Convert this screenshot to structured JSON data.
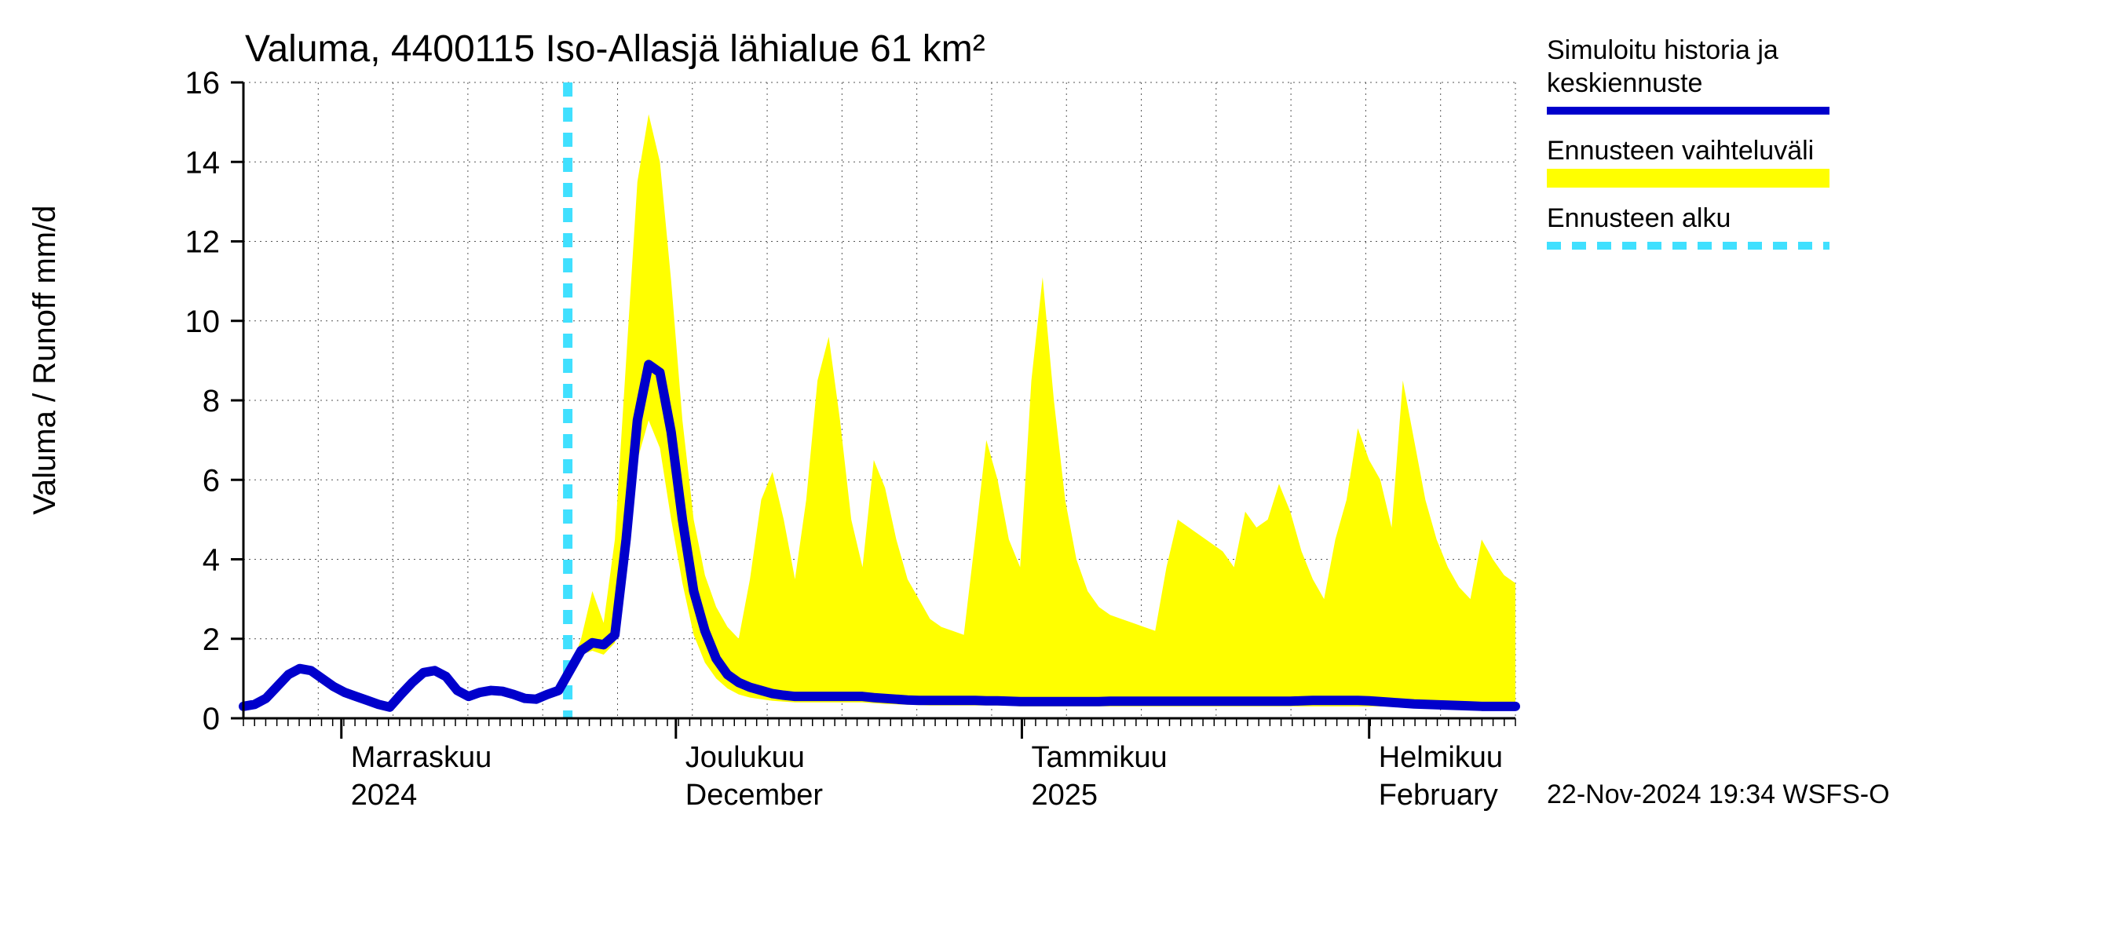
{
  "chart": {
    "type": "line+area",
    "title": "Valuma, 4400115 Iso-Allasjä lähialue 61 km²",
    "y_axis": {
      "label": "Valuma / Runoff   mm/d",
      "min": 0,
      "max": 16,
      "tick_step": 2,
      "label_fontsize": 40,
      "tick_fontsize": 40,
      "tick_color": "#000000"
    },
    "x_axis": {
      "type": "time",
      "months": [
        {
          "top": "Marraskuu",
          "bottom": "2024",
          "pos": 0.077
        },
        {
          "top": "Joulukuu",
          "bottom": "December",
          "pos": 0.34
        },
        {
          "top": "Tammikuu",
          "bottom": "2025",
          "pos": 0.612
        },
        {
          "top": "Helmikuu",
          "bottom": "February",
          "pos": 0.885
        }
      ],
      "label_fontsize": 38
    },
    "grid": {
      "color": "#555555",
      "dash": "2,5",
      "stroke_width": 1
    },
    "background_color": "#ffffff",
    "plot_border_color": "#000000",
    "plot_border_width": 3,
    "footer": "22-Nov-2024 19:34 WSFS-O",
    "legend": {
      "items": [
        {
          "label_line1": "Simuloitu historia ja",
          "label_line2": "keskiennuste",
          "type": "line",
          "color": "#0000cc",
          "stroke_width": 10
        },
        {
          "label_line1": "Ennusteen vaihteluväli",
          "label_line2": "",
          "type": "area",
          "color": "#ffff00"
        },
        {
          "label_line1": "Ennusteen alku",
          "label_line2": "",
          "type": "dash",
          "color": "#40e0ff",
          "stroke_width": 10,
          "dash": "18,14"
        }
      ]
    },
    "forecast_start_x": 0.255,
    "forecast_vline": {
      "color": "#40e0ff",
      "stroke_width": 12,
      "dash": "18,14"
    },
    "band_color": "#ffff00",
    "line_color": "#0000cc",
    "line_width": 12,
    "n_points": 114,
    "central": [
      0.3,
      0.35,
      0.5,
      0.8,
      1.1,
      1.25,
      1.2,
      1.0,
      0.8,
      0.65,
      0.55,
      0.45,
      0.35,
      0.28,
      0.6,
      0.9,
      1.15,
      1.2,
      1.05,
      0.7,
      0.55,
      0.65,
      0.7,
      0.68,
      0.6,
      0.5,
      0.48,
      0.6,
      0.7,
      1.2,
      1.7,
      1.9,
      1.85,
      2.1,
      4.5,
      7.5,
      8.9,
      8.7,
      7.2,
      5.0,
      3.2,
      2.2,
      1.5,
      1.1,
      0.9,
      0.78,
      0.7,
      0.62,
      0.58,
      0.55,
      0.55,
      0.55,
      0.55,
      0.55,
      0.55,
      0.55,
      0.52,
      0.5,
      0.48,
      0.46,
      0.45,
      0.45,
      0.45,
      0.45,
      0.45,
      0.45,
      0.44,
      0.44,
      0.43,
      0.42,
      0.42,
      0.42,
      0.42,
      0.42,
      0.42,
      0.42,
      0.42,
      0.43,
      0.43,
      0.43,
      0.43,
      0.43,
      0.43,
      0.43,
      0.43,
      0.43,
      0.43,
      0.43,
      0.43,
      0.43,
      0.43,
      0.43,
      0.43,
      0.43,
      0.44,
      0.45,
      0.45,
      0.45,
      0.45,
      0.45,
      0.44,
      0.42,
      0.4,
      0.38,
      0.36,
      0.35,
      0.34,
      0.33,
      0.32,
      0.31,
      0.3,
      0.3,
      0.3,
      0.3
    ],
    "upper": [
      0.3,
      0.35,
      0.5,
      0.8,
      1.1,
      1.25,
      1.2,
      1.0,
      0.8,
      0.65,
      0.55,
      0.45,
      0.35,
      0.28,
      0.6,
      0.9,
      1.15,
      1.2,
      1.05,
      0.7,
      0.55,
      0.65,
      0.7,
      0.68,
      0.6,
      0.5,
      0.48,
      0.6,
      0.7,
      1.2,
      2.0,
      3.2,
      2.4,
      4.5,
      9.0,
      13.5,
      15.2,
      14.0,
      11.0,
      7.5,
      5.0,
      3.6,
      2.8,
      2.3,
      2.0,
      3.5,
      5.5,
      6.2,
      5.0,
      3.5,
      5.5,
      8.5,
      9.6,
      7.5,
      5.0,
      3.8,
      6.5,
      5.8,
      4.5,
      3.5,
      3.0,
      2.5,
      2.3,
      2.2,
      2.1,
      4.5,
      7.0,
      6.0,
      4.5,
      3.8,
      8.5,
      11.1,
      8.0,
      5.5,
      4.0,
      3.2,
      2.8,
      2.6,
      2.5,
      2.4,
      2.3,
      2.2,
      3.8,
      5.0,
      4.8,
      4.6,
      4.4,
      4.2,
      3.8,
      5.2,
      4.8,
      5.0,
      5.9,
      5.2,
      4.2,
      3.5,
      3.0,
      4.5,
      5.5,
      7.3,
      6.5,
      6.0,
      4.8,
      8.5,
      7.0,
      5.5,
      4.5,
      3.8,
      3.3,
      3.0,
      4.5,
      4.0,
      3.6,
      3.4
    ],
    "lower": [
      0.3,
      0.35,
      0.5,
      0.8,
      1.1,
      1.25,
      1.2,
      1.0,
      0.8,
      0.65,
      0.55,
      0.45,
      0.35,
      0.28,
      0.6,
      0.9,
      1.15,
      1.2,
      1.05,
      0.7,
      0.55,
      0.65,
      0.7,
      0.68,
      0.6,
      0.5,
      0.48,
      0.6,
      0.7,
      1.2,
      1.6,
      1.7,
      1.6,
      1.9,
      4.0,
      6.5,
      7.5,
      6.8,
      5.0,
      3.4,
      2.1,
      1.4,
      1.0,
      0.75,
      0.6,
      0.52,
      0.48,
      0.44,
      0.42,
      0.4,
      0.4,
      0.4,
      0.4,
      0.4,
      0.4,
      0.4,
      0.38,
      0.36,
      0.35,
      0.34,
      0.33,
      0.32,
      0.32,
      0.32,
      0.32,
      0.32,
      0.32,
      0.32,
      0.32,
      0.3,
      0.3,
      0.3,
      0.3,
      0.3,
      0.3,
      0.3,
      0.3,
      0.3,
      0.3,
      0.3,
      0.3,
      0.3,
      0.3,
      0.3,
      0.3,
      0.3,
      0.3,
      0.3,
      0.3,
      0.3,
      0.3,
      0.3,
      0.3,
      0.3,
      0.3,
      0.3,
      0.3,
      0.3,
      0.3,
      0.3,
      0.3,
      0.3,
      0.3,
      0.3,
      0.28,
      0.27,
      0.26,
      0.25,
      0.25,
      0.25,
      0.25,
      0.25,
      0.25,
      0.25
    ]
  }
}
